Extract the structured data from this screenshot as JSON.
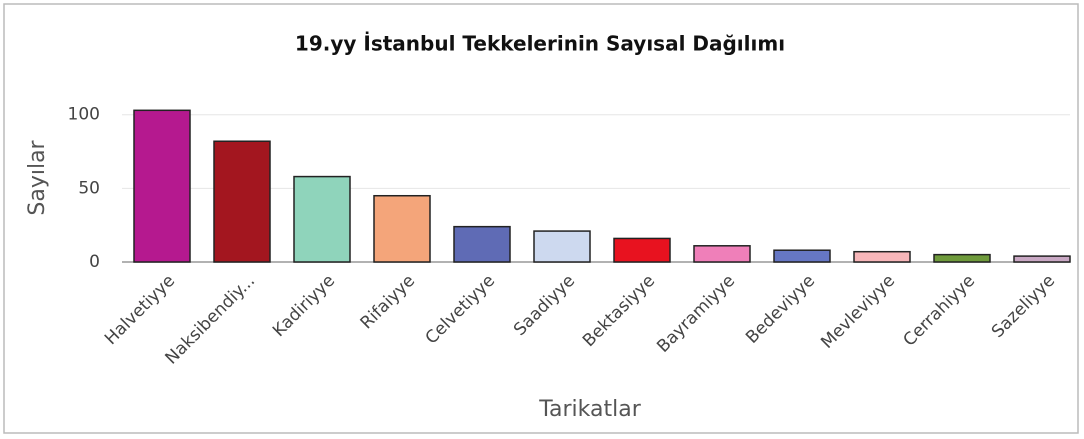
{
  "chart_data": {
    "type": "bar",
    "title": "19.yy İstanbul Tekkelerinin Sayısal Dağılımı",
    "x_label": "Tarikatlar",
    "y_label": "Sayılar",
    "categories": [
      "Halvetiyye",
      "Naksibendiy...",
      "Kadiriyye",
      "Rifaiyye",
      "Celvetiyye",
      "Saadiyye",
      "Bektasiyye",
      "Bayramiyye",
      "Bedeviyye",
      "Mevleviyye",
      "Cerrahiyye",
      "Sazeliyye"
    ],
    "values": [
      103,
      82,
      58,
      45,
      24,
      21,
      16,
      11,
      8,
      7,
      5,
      4
    ],
    "colors": [
      "#b5198f",
      "#a3161f",
      "#8fd4bb",
      "#f4a57a",
      "#5f6bb5",
      "#cdd9ef",
      "#e8121f",
      "#ef7fb9",
      "#6677c4",
      "#f7b6b9",
      "#6f9b3c",
      "#c9a8c4"
    ],
    "ylim": [
      0,
      110
    ],
    "yticks": [
      0,
      50,
      100
    ],
    "grid": true
  }
}
